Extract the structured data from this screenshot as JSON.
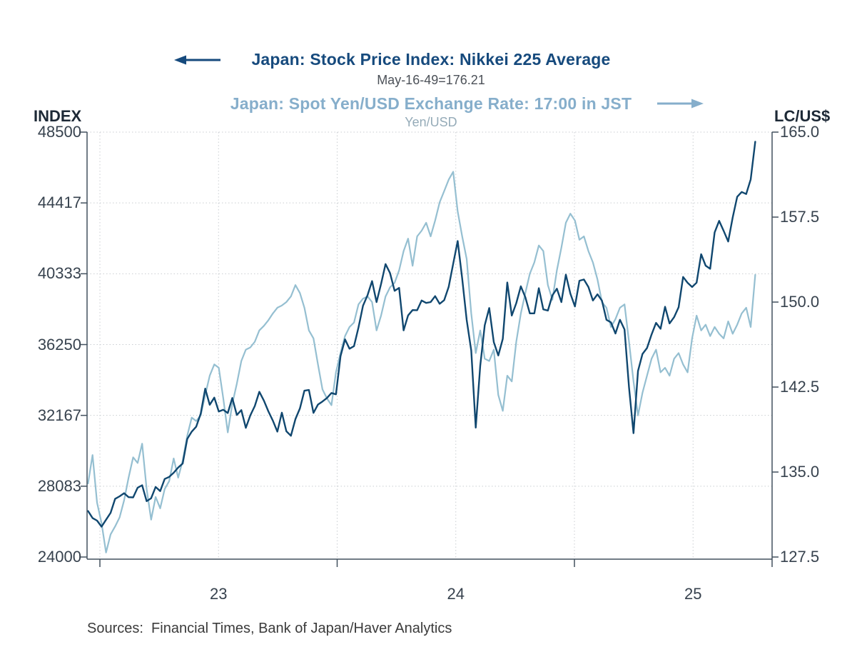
{
  "header": {
    "title1": "Japan: Stock Price Index: Nikkei 225 Average",
    "subtitle1": "May-16-49=176.21",
    "title2": "Japan: Spot Yen/USD Exchange Rate: 17:00 in JST",
    "subtitle2": "Yen/USD"
  },
  "axes": {
    "left_header": "INDEX",
    "right_header": "LC/US$"
  },
  "footer": {
    "sources": "Sources:  Financial Times, Bank of Japan/Haver Analytics"
  },
  "icons": {
    "left_arrow": "left-arrow-icon (points from Nikkei title toward left INDEX axis)",
    "right_arrow": "right-arrow-icon (points from Yen title toward right LC/US$ axis)"
  },
  "colors": {
    "nikkei_line": "#10476f",
    "yen_line": "#95bfd1",
    "nikkei_title": "#164a7d",
    "yen_title": "#86aecb",
    "subtitle1_text": "#4c5158",
    "subtitle2_text": "#95abb8",
    "axis_header_text": "#1d2936",
    "tick_text": "#37424e",
    "spine": "#42505e",
    "grid": "#c9cdd1",
    "sources_text": "#3b3b3b",
    "background": "#ffffff"
  },
  "chart_data": {
    "type": "line",
    "title": "Japan: Stock Price Index: Nikkei 225 Average / Japan: Spot Yen/USD Exchange Rate: 17:00 in JST",
    "xlabel": "",
    "x_axis_labels": [
      "23",
      "24",
      "25"
    ],
    "x_label_positions": [
      2023.5,
      2024.5,
      2025.5
    ],
    "x_tick_positions": [
      2023,
      2024,
      2025
    ],
    "grid_x": [
      2023.0,
      2023.5,
      2024.0,
      2024.5,
      2025.0,
      2025.5
    ],
    "grid_on": true,
    "x_start": 2022.95,
    "x_step_years": 0.019,
    "left_axis": {
      "label": "INDEX",
      "range": [
        24000,
        48500
      ],
      "ticks": [
        48500,
        44417,
        40333,
        36250,
        32167,
        28083,
        24000
      ],
      "tick_labels": [
        "48500",
        "44417",
        "40333",
        "36250",
        "32167",
        "28083",
        "24000"
      ]
    },
    "right_axis": {
      "label": "LC/US$",
      "range": [
        127.5,
        165.0
      ],
      "ticks": [
        165.0,
        157.5,
        150.0,
        142.5,
        135.0,
        127.5
      ],
      "tick_labels": [
        "165.0",
        "157.5",
        "150.0",
        "142.5",
        "135.0",
        "127.5"
      ]
    },
    "series": [
      {
        "name": "Japan: Spot Yen/USD Exchange Rate: 17:00 in JST (Yen/USD)",
        "axis": "right",
        "color": "#95bfd1",
        "width": 2.2,
        "values": [
          134.0,
          136.5,
          132.3,
          130.5,
          127.9,
          129.5,
          130.2,
          131.0,
          132.5,
          134.5,
          136.3,
          135.8,
          137.5,
          133.5,
          130.8,
          132.8,
          131.8,
          133.5,
          134.2,
          136.2,
          134.5,
          136.0,
          138.2,
          139.8,
          139.5,
          140.0,
          141.8,
          143.5,
          144.5,
          144.2,
          141.5,
          138.5,
          141.0,
          142.8,
          144.8,
          145.8,
          146.0,
          146.5,
          147.5,
          147.9,
          148.4,
          149.0,
          149.5,
          149.7,
          150.0,
          150.5,
          151.5,
          150.8,
          149.5,
          147.5,
          146.8,
          144.5,
          142.3,
          141.5,
          140.9,
          143.8,
          145.5,
          147.0,
          147.8,
          148.2,
          149.8,
          150.3,
          150.5,
          150.0,
          147.5,
          148.8,
          150.5,
          151.3,
          151.7,
          152.8,
          154.5,
          155.6,
          153.2,
          155.8,
          156.3,
          157.0,
          155.8,
          157.2,
          158.8,
          159.8,
          160.8,
          161.5,
          158.0,
          155.8,
          153.8,
          149.0,
          145.5,
          147.5,
          145.0,
          144.8,
          145.8,
          141.8,
          140.4,
          143.5,
          143.0,
          146.5,
          149.0,
          150.8,
          152.5,
          153.5,
          155.0,
          154.5,
          151.5,
          150.2,
          152.8,
          154.8,
          157.0,
          157.8,
          157.2,
          155.5,
          155.8,
          154.5,
          153.5,
          152.0,
          150.0,
          149.5,
          147.8,
          148.5,
          149.5,
          149.8,
          146.5,
          143.0,
          140.0,
          142.0,
          143.5,
          145.0,
          145.8,
          143.8,
          144.2,
          143.5,
          145.0,
          145.5,
          144.5,
          143.8,
          146.8,
          148.8,
          147.5,
          148.0,
          147.0,
          147.8,
          147.2,
          146.8,
          148.3,
          147.2,
          148.0,
          149.0,
          149.5,
          147.8,
          152.4
        ]
      },
      {
        "name": "Japan: Stock Price Index: Nikkei 225 Average (May-16-49=176.21)",
        "axis": "left",
        "color": "#10476f",
        "width": 2.4,
        "values": [
          26650,
          26250,
          26100,
          25750,
          26150,
          26550,
          27350,
          27500,
          27680,
          27450,
          27440,
          28000,
          28140,
          27220,
          27390,
          28040,
          27800,
          28500,
          28620,
          28860,
          29160,
          29390,
          30810,
          31230,
          31520,
          32270,
          33710,
          32780,
          33190,
          32390,
          32490,
          32300,
          33170,
          32190,
          32470,
          31450,
          32170,
          32710,
          33530,
          33020,
          32400,
          31860,
          31230,
          32320,
          31250,
          30990,
          31950,
          32570,
          33590,
          33630,
          32310,
          32790,
          32970,
          33170,
          33460,
          33380,
          35580,
          36550,
          36010,
          36160,
          37240,
          38490,
          39100,
          39910,
          38700,
          39740,
          40890,
          40370,
          39350,
          39520,
          37070,
          37930,
          38240,
          38230,
          38790,
          38650,
          38700,
          39040,
          38600,
          38810,
          39580,
          40910,
          42220,
          40060,
          37670,
          35910,
          31460,
          35030,
          37360,
          38360,
          36390,
          35620,
          36580,
          39830,
          37920,
          38640,
          39610,
          38980,
          38050,
          38050,
          39500,
          38280,
          38210,
          39090,
          39470,
          38700,
          40280,
          39190,
          38450,
          39930,
          40000,
          39570,
          38790,
          39150,
          38780,
          37680,
          37530,
          36890,
          37680,
          37120,
          33780,
          31140,
          34730,
          35710,
          36050,
          36830,
          37500,
          37160,
          38430,
          37470,
          37830,
          38400,
          40150,
          39810,
          39570,
          39820,
          41460,
          40800,
          40620,
          42720,
          43380,
          42810,
          42190,
          43580,
          44770,
          45050,
          44930,
          45770,
          47950
        ]
      }
    ]
  }
}
